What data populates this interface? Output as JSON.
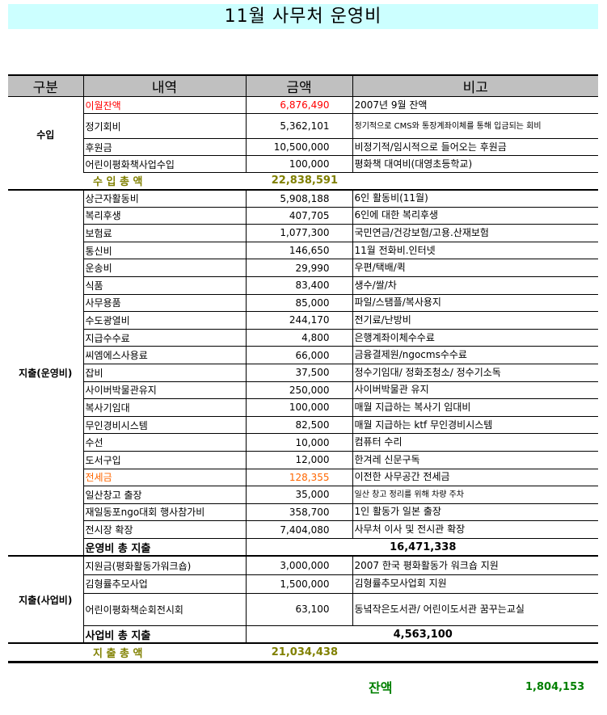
{
  "title": "11월 사무처 운영비",
  "headers": [
    "구분",
    "내역",
    "금액",
    "비고"
  ],
  "income": {
    "group": "수입",
    "rows": [
      {
        "item": "이월잔액",
        "amount": "6,876,490",
        "note": "2007년 9월 잔액",
        "color": "#ff0000"
      },
      {
        "item": "정기회비",
        "amount": "5,362,101",
        "note": "정기적으로 CMS와 통장계좌이체를 통해 입금되는 회비",
        "small": true
      },
      {
        "item": "후원금",
        "amount": "10,500,000",
        "note": "비정기적/임시적으로 들어오는 후원금"
      },
      {
        "item": "어린이평화책사업수입",
        "amount": "100,000",
        "note": "평화책 대여비(대영초등학교)"
      }
    ],
    "total_label": "수 입 총 액",
    "total": "22,838,591"
  },
  "operating": {
    "group": "지출(운영비)",
    "rows": [
      {
        "item": "상근자활동비",
        "amount": "5,908,188",
        "note": "6인 활동비(11월)"
      },
      {
        "item": "복리후생",
        "amount": "407,705",
        "note": "6인에 대한 복리후생"
      },
      {
        "item": "보험료",
        "amount": "1,077,300",
        "note": "국민연금/건강보험/고용.산재보험"
      },
      {
        "item": "통신비",
        "amount": "146,650",
        "note": "11월 전화비.인터넷"
      },
      {
        "item": "운송비",
        "amount": "29,990",
        "note": "우편/택배/퀵"
      },
      {
        "item": "식품",
        "amount": "83,400",
        "note": "생수/쌀/차"
      },
      {
        "item": "사무용품",
        "amount": "85,000",
        "note": "파일/스탬플/복사용지"
      },
      {
        "item": "수도광열비",
        "amount": "244,170",
        "note": "전기료/난방비"
      },
      {
        "item": "지급수수료",
        "amount": "4,800",
        "note": "은행계좌이체수수료"
      },
      {
        "item": "씨엠에스사용료",
        "amount": "66,000",
        "note": "금융결제원/ngocms수수료"
      },
      {
        "item": "잡비",
        "amount": "37,500",
        "note": "정수기임대/ 정화조청소/ 정수기소독"
      },
      {
        "item": "사이버박물관유지",
        "amount": "250,000",
        "note": "사이버박물관 유지"
      },
      {
        "item": "복사기임대",
        "amount": "100,000",
        "note": "매월 지급하는 복사기 임대비"
      },
      {
        "item": "무인경비시스템",
        "amount": "82,500",
        "note": "매월 지급하는 ktf 무인경비시스템"
      },
      {
        "item": "수선",
        "amount": "10,000",
        "note": "컴퓨터 수리"
      },
      {
        "item": "도서구입",
        "amount": "12,000",
        "note": "한겨레 신문구독"
      },
      {
        "item": "전세금",
        "amount": "128,355",
        "note": "이전한 사무공간 전세금",
        "color": "#ff6600"
      },
      {
        "item": "일산창고 출장",
        "amount": "35,000",
        "note": "일산 창고 정리를 위해 차량 주차",
        "small": true
      },
      {
        "item": " 재일동포ngo대회 행사참가비",
        "amount": "358,700",
        "note": "1인 활동가 일본 출장"
      },
      {
        "item": "전시장 확장",
        "amount": "7,404,080",
        "note": "사무처 이사 및 전시관 확장"
      }
    ],
    "total_label": "운영비 총 지출",
    "total": "16,471,338"
  },
  "business": {
    "group": "지출(사업비)",
    "rows": [
      {
        "item": "지원금(평화활동가워크숍)",
        "amount": "3,000,000",
        "note": "2007 한국 평화활동가 워크숍 지원"
      },
      {
        "item": "김형률추모사업",
        "amount": "1,500,000",
        "note": "김형률추모사업회 지원"
      },
      {
        "item": "어린이평화책순회전시회",
        "amount": "63,100",
        "note": " 동녘작은도서관/ 어린이도서관 꿈꾸는교실",
        "tall": true
      }
    ],
    "total_label": "사업비 총 지출",
    "total": "4,563,100"
  },
  "expense_total": {
    "label": "지 출 총 액",
    "value": "21,034,438"
  },
  "balance": {
    "label": "잔액",
    "value": "1,804,153"
  },
  "colors": {
    "title_bg": "#ccffff",
    "header_bg": "#c0c0c0",
    "total_text": "#808000",
    "balance_text": "#008000"
  }
}
